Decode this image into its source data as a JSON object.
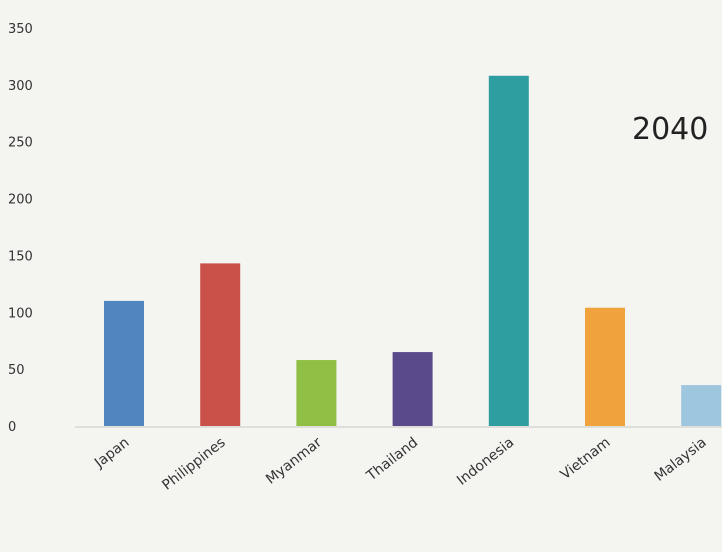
{
  "chart_data": {
    "type": "bar",
    "categories": [
      "Japan",
      "Philippines",
      "Myanmar",
      "Thailand",
      "Indonesia",
      "Vietnam",
      "Malaysia"
    ],
    "values": [
      110,
      143,
      58,
      65,
      308,
      104,
      36
    ],
    "colors": [
      "#4f86c0",
      "#c9514a",
      "#8fbf45",
      "#5a4a8c",
      "#2f9ea0",
      "#f0a23c",
      "#9fc6df"
    ],
    "yticks": [
      0,
      50,
      100,
      150,
      200,
      250,
      300,
      350
    ],
    "ylim": [
      0,
      350
    ],
    "annotation": "2040",
    "grid": false,
    "legend": "none"
  }
}
